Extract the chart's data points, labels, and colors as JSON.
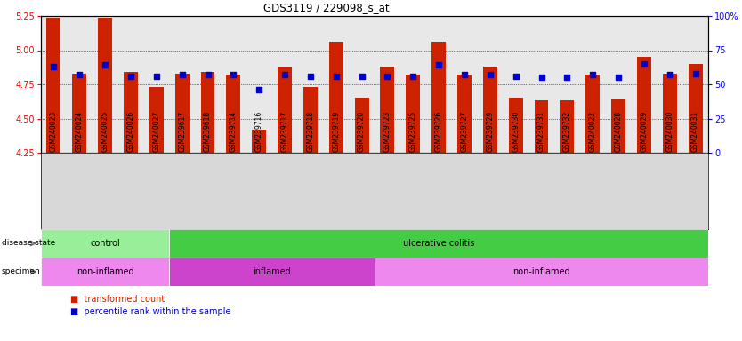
{
  "title": "GDS3119 / 229098_s_at",
  "samples": [
    "GSM240023",
    "GSM240024",
    "GSM240025",
    "GSM240026",
    "GSM240027",
    "GSM239617",
    "GSM239618",
    "GSM239714",
    "GSM239716",
    "GSM239717",
    "GSM239718",
    "GSM239719",
    "GSM239720",
    "GSM239723",
    "GSM239725",
    "GSM239726",
    "GSM239727",
    "GSM239729",
    "GSM239730",
    "GSM239731",
    "GSM239732",
    "GSM240022",
    "GSM240028",
    "GSM240029",
    "GSM240030",
    "GSM240031"
  ],
  "transformed_count": [
    5.24,
    4.83,
    5.24,
    4.84,
    4.73,
    4.83,
    4.84,
    4.82,
    4.42,
    4.88,
    4.73,
    5.06,
    4.65,
    4.88,
    4.82,
    5.06,
    4.82,
    4.88,
    4.65,
    4.63,
    4.63,
    4.82,
    4.64,
    4.95,
    4.83,
    4.9
  ],
  "percentile_rank": [
    63,
    57,
    64,
    56,
    56,
    57,
    57,
    57,
    46,
    57,
    56,
    56,
    56,
    56,
    56,
    64,
    57,
    57,
    56,
    55,
    55,
    57,
    55,
    65,
    57,
    58
  ],
  "ymin": 4.25,
  "ymax": 5.25,
  "yticks": [
    4.25,
    4.5,
    4.75,
    5.0,
    5.25
  ],
  "y2ticks_vals": [
    0,
    25,
    50,
    75,
    100
  ],
  "y2ticks_labels": [
    "0",
    "25",
    "50",
    "75",
    "100%"
  ],
  "bar_color": "#cc2200",
  "dot_color": "#0000cc",
  "disease_state_groups": [
    {
      "label": "control",
      "start": 0,
      "end": 5,
      "color": "#99ee99"
    },
    {
      "label": "ulcerative colitis",
      "start": 5,
      "end": 26,
      "color": "#44cc44"
    }
  ],
  "specimen_groups": [
    {
      "label": "non-inflamed",
      "start": 0,
      "end": 5,
      "color": "#ee88ee"
    },
    {
      "label": "inflamed",
      "start": 5,
      "end": 13,
      "color": "#cc44cc"
    },
    {
      "label": "non-inflamed",
      "start": 13,
      "end": 26,
      "color": "#ee88ee"
    }
  ],
  "plot_bg": "#e8e8e8",
  "xtick_bg": "#d8d8d8"
}
